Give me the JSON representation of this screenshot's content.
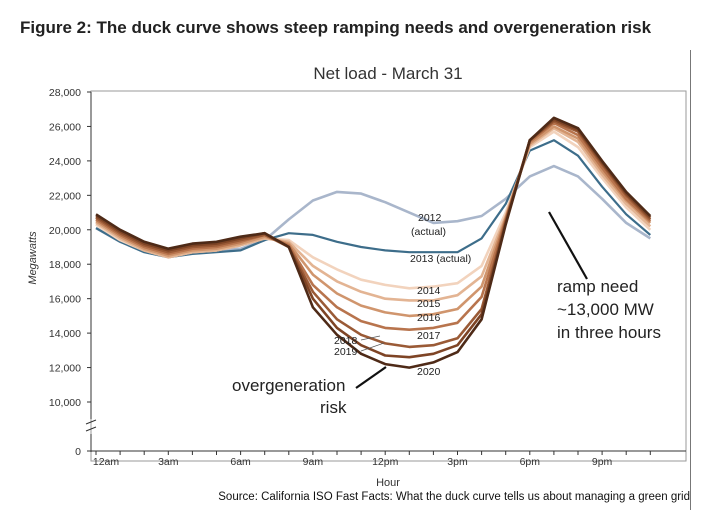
{
  "figure_title": "Figure 2: The duck curve shows steep ramping needs and overgeneration risk",
  "source": "Source: California ISO Fast Facts: What the duck curve tells us about managing a green grid",
  "chart_data": {
    "type": "line",
    "title": "Net load - March 31",
    "xlabel": "Hour",
    "ylabel": "Megawatts",
    "x": [
      0,
      1,
      2,
      3,
      4,
      5,
      6,
      7,
      8,
      9,
      10,
      11,
      12,
      13,
      14,
      15,
      16,
      17,
      18,
      19,
      20,
      21,
      22,
      23
    ],
    "x_tick_labels": [
      {
        "x": 0,
        "label": "12am"
      },
      {
        "x": 3,
        "label": "3am"
      },
      {
        "x": 6,
        "label": "6am"
      },
      {
        "x": 9,
        "label": "9am"
      },
      {
        "x": 12,
        "label": "12pm"
      },
      {
        "x": 15,
        "label": "3pm"
      },
      {
        "x": 18,
        "label": "6pm"
      },
      {
        "x": 21,
        "label": "9pm"
      }
    ],
    "y_ticks": [
      {
        "value": 0,
        "label": "0"
      },
      {
        "value": 10000,
        "label": "10,000"
      },
      {
        "value": 12000,
        "label": "12,000"
      },
      {
        "value": 14000,
        "label": "14,000"
      },
      {
        "value": 16000,
        "label": "16,000"
      },
      {
        "value": 18000,
        "label": "18,000"
      },
      {
        "value": 20000,
        "label": "20,000"
      },
      {
        "value": 22000,
        "label": "22,000"
      },
      {
        "value": 24000,
        "label": "24,000"
      },
      {
        "value": 26000,
        "label": "26,000"
      },
      {
        "value": 28000,
        "label": "28,000"
      }
    ],
    "y_axis_break": true,
    "ylim": [
      0,
      28000
    ],
    "grid": false,
    "legend": "none (series labelled directly on the chart)",
    "series": [
      {
        "name": "2012 (actual)",
        "color": "#a9b6cb",
        "values": [
          20100,
          19300,
          18800,
          18500,
          18700,
          18800,
          18900,
          19400,
          20600,
          21700,
          22200,
          22100,
          21600,
          21000,
          20400,
          20500,
          20800,
          21800,
          23100,
          23700,
          23100,
          21800,
          20400,
          19500
        ]
      },
      {
        "name": "2013 (actual)",
        "color": "#3d6d8a",
        "values": [
          20100,
          19300,
          18700,
          18400,
          18600,
          18700,
          18800,
          19400,
          19800,
          19700,
          19300,
          19000,
          18800,
          18700,
          18700,
          18700,
          19500,
          21500,
          24600,
          25200,
          24300,
          22500,
          20900,
          19700
        ]
      },
      {
        "name": "2014",
        "color": "#f2d3bd",
        "values": [
          20300,
          19400,
          18800,
          18400,
          18700,
          18800,
          19100,
          19500,
          19400,
          18400,
          17700,
          17100,
          16800,
          16600,
          16700,
          16900,
          17900,
          21000,
          24800,
          25700,
          24800,
          23000,
          21300,
          20000
        ]
      },
      {
        "name": "2015",
        "color": "#e3b493",
        "values": [
          20400,
          19500,
          18800,
          18400,
          18700,
          18800,
          19100,
          19500,
          19300,
          17900,
          17000,
          16400,
          16000,
          15900,
          15900,
          16200,
          17300,
          20800,
          24900,
          25900,
          25100,
          23200,
          21500,
          20200
        ]
      },
      {
        "name": "2016",
        "color": "#d0956d",
        "values": [
          20500,
          19600,
          18900,
          18500,
          18800,
          18900,
          19200,
          19600,
          19200,
          17400,
          16300,
          15600,
          15200,
          15000,
          15100,
          15400,
          16700,
          20700,
          25000,
          26000,
          25300,
          23400,
          21700,
          20400
        ]
      },
      {
        "name": "2017",
        "color": "#b8744d",
        "values": [
          20600,
          19700,
          19000,
          18600,
          18900,
          19000,
          19300,
          19700,
          19100,
          16800,
          15500,
          14700,
          14300,
          14200,
          14300,
          14600,
          16100,
          20600,
          25100,
          26200,
          25500,
          23600,
          21800,
          20500
        ]
      },
      {
        "name": "2018",
        "color": "#9a5a36",
        "values": [
          20700,
          19800,
          19100,
          18700,
          19000,
          19100,
          19400,
          19700,
          19000,
          16400,
          14800,
          13900,
          13400,
          13200,
          13300,
          13700,
          15400,
          20500,
          25200,
          26300,
          25700,
          23800,
          22000,
          20600
        ]
      },
      {
        "name": "2019",
        "color": "#7e4425",
        "values": [
          20800,
          19900,
          19200,
          18800,
          19100,
          19200,
          19500,
          19800,
          19000,
          16000,
          14300,
          13300,
          12700,
          12600,
          12800,
          13300,
          15100,
          20400,
          25200,
          26400,
          25800,
          23900,
          22100,
          20700
        ]
      },
      {
        "name": "2020",
        "color": "#4e2a17",
        "values": [
          20900,
          20000,
          19300,
          18900,
          19200,
          19300,
          19600,
          19800,
          19000,
          15500,
          13900,
          12800,
          12200,
          12000,
          12300,
          12900,
          14800,
          20300,
          25200,
          26500,
          25900,
          24000,
          22200,
          20800
        ]
      }
    ],
    "annotations": [
      {
        "text": "ramp need",
        "kind": "callout"
      },
      {
        "text": "~13,000 MW",
        "kind": "callout"
      },
      {
        "text": "in three hours",
        "kind": "callout"
      },
      {
        "text": "overgeneration",
        "kind": "callout"
      },
      {
        "text": "risk",
        "kind": "callout"
      }
    ]
  }
}
